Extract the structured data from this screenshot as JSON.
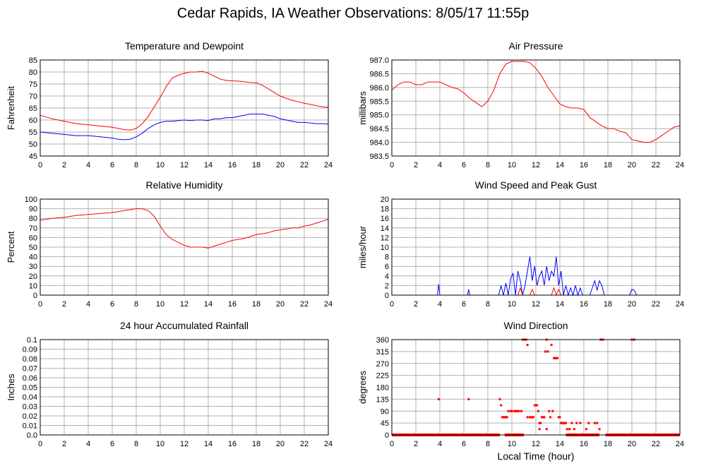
{
  "page": {
    "title": "Cedar Rapids, IA Weather Observations: 8/05/17 11:55p",
    "xlabel": "Local Time (hour)"
  },
  "colors": {
    "temperature": "#ff0000",
    "dewpoint": "#0000ff",
    "grid": "#b0b0b0",
    "frame": "#000000"
  },
  "chart_data": [
    {
      "type": "line",
      "title": "Temperature and Dewpoint",
      "ylabel": "Fahrenheit",
      "xlim": [
        0,
        24
      ],
      "ylim": [
        45,
        85
      ],
      "xticks": [
        0,
        2,
        4,
        6,
        8,
        10,
        12,
        14,
        16,
        18,
        20,
        22,
        24
      ],
      "yticks": [
        "45",
        "50",
        "55",
        "60",
        "65",
        "70",
        "75",
        "80",
        "85"
      ],
      "series": [
        {
          "color": "#ff0000",
          "x": [
            0,
            1,
            2,
            3,
            4,
            5,
            6,
            6.5,
            7,
            7.5,
            8,
            8.5,
            9,
            9.5,
            10,
            10.5,
            11,
            11.5,
            12,
            12.5,
            13,
            13.5,
            14,
            14.5,
            15,
            15.5,
            16,
            16.5,
            17,
            17.5,
            18,
            18.5,
            19,
            19.5,
            20,
            20.5,
            21,
            21.5,
            22,
            22.5,
            23,
            23.5,
            24
          ],
          "y": [
            62,
            60.5,
            59.5,
            58.5,
            58,
            57.5,
            57,
            56.5,
            56,
            55.8,
            56.5,
            58.5,
            61.5,
            65.5,
            69.5,
            74,
            77.5,
            78.7,
            79.5,
            80,
            80,
            80.3,
            79.5,
            78.3,
            77,
            76.5,
            76.3,
            76.2,
            76,
            75.6,
            75.5,
            74.5,
            73,
            71.5,
            70,
            69,
            68.2,
            67.6,
            67,
            66.5,
            66,
            65.5,
            65.2
          ]
        },
        {
          "color": "#0000ff",
          "x": [
            0,
            1,
            2,
            3,
            4,
            5,
            6,
            6.5,
            7,
            7.5,
            8,
            8.5,
            9,
            9.5,
            10,
            10.5,
            11,
            11.5,
            12,
            12.5,
            13,
            13.5,
            14,
            14.5,
            15,
            15.5,
            16,
            16.5,
            17,
            17.5,
            18,
            18.5,
            19,
            19.5,
            20,
            20.5,
            21,
            21.5,
            22,
            22.5,
            23,
            23.5,
            24
          ],
          "y": [
            55,
            54.5,
            54,
            53.5,
            53.5,
            53,
            52.5,
            52,
            51.8,
            52,
            53,
            54.5,
            56.5,
            58,
            59,
            59.5,
            59.5,
            59.8,
            60,
            59.8,
            60,
            60,
            59.8,
            60.5,
            60.5,
            61,
            61,
            61.5,
            62,
            62.5,
            62.5,
            62.5,
            62,
            61.5,
            60.5,
            60,
            59.5,
            59,
            59,
            58.8,
            58.5,
            58.5,
            58.3
          ]
        }
      ]
    },
    {
      "type": "line",
      "title": "Air Pressure",
      "ylabel": "millibars",
      "xlim": [
        0,
        24
      ],
      "ylim": [
        983.5,
        987.0
      ],
      "xticks": [
        0,
        2,
        4,
        6,
        8,
        10,
        12,
        14,
        16,
        18,
        20,
        22,
        24
      ],
      "yticks": [
        "983.5",
        "984.0",
        "984.5",
        "985.0",
        "985.5",
        "986.0",
        "986.5",
        "987.0"
      ],
      "series": [
        {
          "color": "#ff0000",
          "x": [
            0,
            0.5,
            1,
            1.5,
            2,
            2.5,
            3,
            3.5,
            4,
            4.5,
            5,
            5.5,
            6,
            6.5,
            7,
            7.5,
            8,
            8.5,
            9,
            9.5,
            10,
            10.5,
            11,
            11.5,
            12,
            12.5,
            13,
            13.5,
            14,
            14.5,
            15,
            15.5,
            16,
            16.5,
            17,
            17.5,
            18,
            18.5,
            19,
            19.5,
            20,
            20.5,
            21,
            21.5,
            22,
            22.5,
            23,
            23.5,
            24
          ],
          "y": [
            985.9,
            986.1,
            986.2,
            986.2,
            986.1,
            986.1,
            986.2,
            986.2,
            986.2,
            986.1,
            986.0,
            985.95,
            985.8,
            985.6,
            985.45,
            985.3,
            985.5,
            985.9,
            986.5,
            986.85,
            986.95,
            986.95,
            986.95,
            986.9,
            986.7,
            986.4,
            986.0,
            985.7,
            985.4,
            985.3,
            985.25,
            985.25,
            985.2,
            984.9,
            984.75,
            984.6,
            984.5,
            984.5,
            984.4,
            984.35,
            984.1,
            984.05,
            984.0,
            984.0,
            984.1,
            984.25,
            984.4,
            984.55,
            984.6
          ]
        }
      ]
    },
    {
      "type": "line",
      "title": "Relative Humidity",
      "ylabel": "Percent",
      "xlim": [
        0,
        24
      ],
      "ylim": [
        0,
        100
      ],
      "xticks": [
        0,
        2,
        4,
        6,
        8,
        10,
        12,
        14,
        16,
        18,
        20,
        22,
        24
      ],
      "yticks": [
        "0",
        "10",
        "20",
        "30",
        "40",
        "50",
        "60",
        "70",
        "80",
        "90",
        "100"
      ],
      "series": [
        {
          "color": "#ff0000",
          "x": [
            0,
            1,
            2,
            3,
            4,
            5,
            6,
            6.5,
            7,
            7.5,
            8,
            8.5,
            9,
            9.5,
            10,
            10.5,
            11,
            11.5,
            12,
            12.5,
            13,
            13.5,
            14,
            14.5,
            15,
            15.5,
            16,
            16.5,
            17,
            17.5,
            18,
            18.5,
            19,
            19.5,
            20,
            20.5,
            21,
            21.5,
            22,
            22.5,
            23,
            23.5,
            24
          ],
          "y": [
            78,
            80,
            81,
            83,
            84,
            85,
            86,
            87,
            88,
            89,
            90,
            90,
            88,
            82,
            72,
            63,
            58,
            55,
            52,
            50,
            50,
            50,
            49,
            51,
            53,
            55,
            57,
            58,
            59,
            61,
            63,
            64,
            65,
            67,
            68,
            69,
            70,
            70,
            72,
            73,
            75,
            77,
            79
          ]
        }
      ]
    },
    {
      "type": "line",
      "title": "Wind Speed and Peak Gust",
      "ylabel": "miles/hour",
      "xlim": [
        0,
        24
      ],
      "ylim": [
        0,
        20
      ],
      "xticks": [
        0,
        2,
        4,
        6,
        8,
        10,
        12,
        14,
        16,
        18,
        20,
        22,
        24
      ],
      "yticks": [
        "0",
        "2",
        "4",
        "6",
        "8",
        "10",
        "12",
        "14",
        "16",
        "18",
        "20"
      ],
      "series": [
        {
          "color": "#0000ff",
          "x": [
            0,
            3.8,
            3.9,
            4.0,
            6.3,
            6.4,
            6.5,
            8.9,
            9.1,
            9.3,
            9.5,
            9.7,
            9.9,
            10.1,
            10.3,
            10.5,
            10.7,
            10.9,
            11.1,
            11.3,
            11.5,
            11.7,
            11.9,
            12.1,
            12.3,
            12.5,
            12.7,
            12.9,
            13.1,
            13.3,
            13.5,
            13.7,
            13.9,
            14.1,
            14.3,
            14.5,
            14.7,
            14.9,
            15.1,
            15.3,
            15.5,
            15.7,
            15.9,
            16.5,
            16.9,
            17.1,
            17.3,
            17.5,
            17.7,
            17.9,
            19.8,
            20.0,
            20.2,
            20.4,
            24
          ],
          "y": [
            0,
            0,
            2.3,
            0,
            0,
            1.2,
            0,
            0,
            2,
            0,
            2.5,
            0,
            3.5,
            4.5,
            0,
            5,
            3,
            0,
            2,
            5,
            8,
            3,
            6,
            2,
            4,
            5,
            2,
            6,
            3,
            5,
            4,
            8,
            2,
            5,
            0,
            2,
            0,
            1.5,
            0,
            2,
            0,
            1.5,
            0,
            0,
            3,
            1,
            3,
            2,
            0,
            0,
            0,
            1.2,
            1,
            0,
            0
          ]
        },
        {
          "color": "#ff0000",
          "x": [
            0,
            10.5,
            10.7,
            10.9,
            11.5,
            11.7,
            11.9,
            12.5,
            13.3,
            13.5,
            13.7,
            13.9,
            14.1,
            24
          ],
          "y": [
            0,
            0,
            1.5,
            0,
            0,
            1.2,
            0,
            0,
            0,
            1.5,
            0,
            1.2,
            0,
            0
          ]
        }
      ]
    },
    {
      "type": "line",
      "title": "24 hour Accumulated Rainfall",
      "ylabel": "Inches",
      "xlim": [
        0,
        24
      ],
      "ylim": [
        0,
        0.1
      ],
      "xticks": [
        0,
        2,
        4,
        6,
        8,
        10,
        12,
        14,
        16,
        18,
        20,
        22,
        24
      ],
      "yticks": [
        "0.0",
        "0.01",
        "0.02",
        "0.03",
        "0.04",
        "0.05",
        "0.06",
        "0.07",
        "0.08",
        "0.09",
        "0.1"
      ],
      "series": [
        {
          "color": "#ff00ff",
          "x": [
            0,
            24
          ],
          "y": [
            0,
            0
          ]
        }
      ]
    },
    {
      "type": "scatter",
      "title": "Wind Direction",
      "ylabel": "degrees",
      "xlim": [
        0,
        24
      ],
      "ylim": [
        0,
        360
      ],
      "xticks": [
        0,
        2,
        4,
        6,
        8,
        10,
        12,
        14,
        16,
        18,
        20,
        22,
        24
      ],
      "yticks": [
        "0",
        "45",
        "90",
        "135",
        "180",
        "225",
        "270",
        "315",
        "360"
      ],
      "series": [
        {
          "color": "#ff0000",
          "zero_band": [
            [
              0,
              9.0
            ],
            [
              9.4,
              11.0
            ],
            [
              14.5,
              17.3
            ],
            [
              17.8,
              24
            ]
          ],
          "x": [
            3.9,
            6.4,
            9.0,
            9.1,
            9.2,
            9.3,
            9.4,
            9.5,
            9.6,
            9.7,
            9.9,
            10.0,
            10.2,
            10.3,
            10.4,
            10.5,
            10.6,
            10.8,
            10.9,
            11.0,
            11.1,
            11.2,
            11.3,
            11.3,
            11.5,
            11.6,
            11.7,
            11.8,
            11.9,
            12.0,
            12.1,
            12.2,
            12.3,
            12.3,
            12.4,
            12.5,
            12.6,
            12.7,
            12.8,
            12.9,
            12.9,
            13.0,
            13.1,
            13.2,
            13.3,
            13.4,
            13.5,
            13.6,
            13.7,
            13.8,
            13.9,
            14.0,
            14.1,
            14.2,
            14.3,
            14.4,
            14.5,
            14.6,
            14.8,
            15.0,
            15.2,
            15.4,
            15.7,
            16.2,
            16.4,
            16.9,
            17.1,
            17.3,
            17.4,
            17.5,
            17.6,
            20.0,
            20.2
          ],
          "y": [
            135,
            135,
            135,
            112,
            67,
            67,
            67,
            67,
            67,
            90,
            90,
            90,
            90,
            90,
            90,
            90,
            90,
            90,
            360,
            360,
            360,
            360,
            340,
            67,
            67,
            67,
            67,
            67,
            112,
            112,
            112,
            90,
            45,
            22,
            45,
            67,
            67,
            67,
            315,
            360,
            22,
            315,
            90,
            67,
            340,
            90,
            290,
            290,
            290,
            290,
            67,
            67,
            45,
            45,
            45,
            45,
            45,
            22,
            22,
            45,
            22,
            45,
            45,
            22,
            45,
            45,
            45,
            22,
            360,
            360,
            360,
            360,
            360
          ]
        }
      ]
    }
  ]
}
